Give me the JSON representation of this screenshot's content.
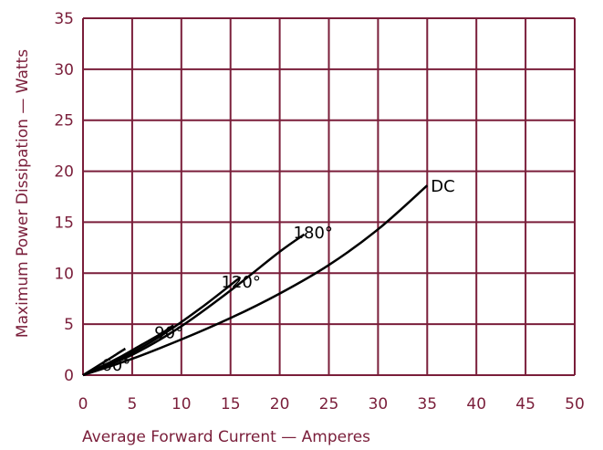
{
  "chart_data": {
    "type": "line",
    "title": "",
    "xlabel": "Average Forward Current — Amperes",
    "ylabel": "Maximum Power Dissipation — Watts",
    "xlim": [
      0,
      50
    ],
    "ylim": [
      0,
      35
    ],
    "xticks": [
      "0",
      "5",
      "10",
      "15",
      "20",
      "25",
      "30",
      "35",
      "40",
      "45",
      "50"
    ],
    "yticks": [
      "0",
      "5",
      "10",
      "15",
      "20",
      "25",
      "30",
      "35"
    ],
    "grid": true,
    "colors": {
      "grid": "#7a1e3a",
      "text": "#7a1e3a",
      "curve": "#000000"
    },
    "series": [
      {
        "name": "60°",
        "x": [
          0,
          1,
          2,
          3,
          4.3
        ],
        "y": [
          0,
          0.6,
          1.2,
          1.8,
          2.6
        ]
      },
      {
        "name": "90°",
        "x": [
          0,
          2,
          4,
          6,
          8,
          9.2
        ],
        "y": [
          0,
          0.9,
          1.9,
          3.0,
          4.1,
          4.9
        ]
      },
      {
        "name": "120°",
        "x": [
          0,
          4,
          8,
          12,
          16
        ],
        "y": [
          0,
          1.7,
          3.9,
          6.6,
          9.6
        ]
      },
      {
        "name": "180°",
        "x": [
          0,
          5,
          10,
          15,
          20,
          22.5
        ],
        "y": [
          0,
          2.0,
          4.8,
          8.3,
          12.1,
          13.8
        ]
      },
      {
        "name": "DC",
        "x": [
          0,
          5,
          10,
          15,
          20,
          25,
          30,
          35
        ],
        "y": [
          0,
          1.6,
          3.5,
          5.6,
          8.0,
          10.8,
          14.3,
          18.6
        ]
      }
    ]
  }
}
